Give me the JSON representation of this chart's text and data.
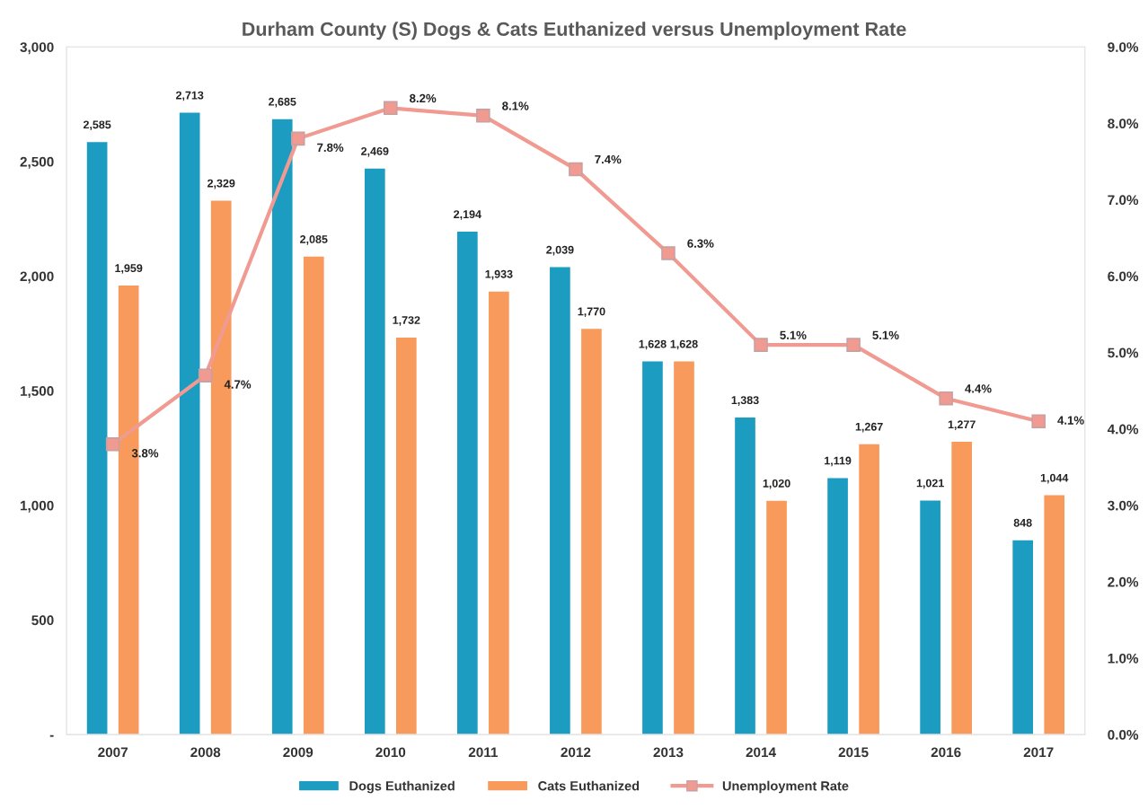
{
  "chart_data": {
    "type": "bar",
    "title": "Durham County (S) Dogs & Cats Euthanized versus Unemployment Rate",
    "categories": [
      "2007",
      "2008",
      "2009",
      "2010",
      "2011",
      "2012",
      "2013",
      "2014",
      "2015",
      "2016",
      "2017"
    ],
    "series": [
      {
        "name": "Dogs Euthanized",
        "color": "#1b9cc0",
        "values": [
          2585,
          2713,
          2685,
          2469,
          2194,
          2039,
          1628,
          1383,
          1119,
          1021,
          848
        ],
        "value_labels": [
          "2,585",
          "2,713",
          "2,685",
          "2,469",
          "2,194",
          "2,039",
          "1,628",
          "1,383",
          "1,119",
          "1,021",
          "848"
        ]
      },
      {
        "name": "Cats Euthanized",
        "color": "#f89a5c",
        "values": [
          1959,
          2329,
          2085,
          1732,
          1933,
          1770,
          1628,
          1020,
          1267,
          1277,
          1044
        ],
        "value_labels": [
          "1,959",
          "2,329",
          "2,085",
          "1,732",
          "1,933",
          "1,770",
          "1,628",
          "1,020",
          "1,267",
          "1,277",
          "1,044"
        ]
      },
      {
        "name": "Unemployment Rate",
        "type": "line",
        "axis": "y2",
        "color": "#f09a92",
        "marker": "square",
        "line_style": "solid",
        "values": [
          3.8,
          4.7,
          7.8,
          8.2,
          8.1,
          7.4,
          6.3,
          5.1,
          5.1,
          4.4,
          4.1
        ],
        "value_labels": [
          "3.8%",
          "4.7%",
          "7.8%",
          "8.2%",
          "8.1%",
          "7.4%",
          "6.3%",
          "5.1%",
          "5.1%",
          "4.4%",
          "4.1%"
        ]
      }
    ],
    "ylim": [
      0,
      3000
    ],
    "yticks": [
      {
        "value": 0,
        "label": "-"
      },
      500,
      {
        "value": 1000,
        "label": "1,000"
      },
      {
        "value": 1500,
        "label": "1,500"
      },
      {
        "value": 2000,
        "label": "2,000"
      },
      {
        "value": 2500,
        "label": "2,500"
      },
      {
        "value": 3000,
        "label": "3,000"
      }
    ],
    "y2lim": [
      0,
      9
    ],
    "y2ticks": [
      {
        "value": 0,
        "label": "0.0%"
      },
      {
        "value": 1,
        "label": "1.0%"
      },
      {
        "value": 2,
        "label": "2.0%"
      },
      {
        "value": 3,
        "label": "3.0%"
      },
      {
        "value": 4,
        "label": "4.0%"
      },
      {
        "value": 5,
        "label": "5.0%"
      },
      {
        "value": 6,
        "label": "6.0%"
      },
      {
        "value": 7,
        "label": "7.0%"
      },
      {
        "value": 8,
        "label": "8.0%"
      },
      {
        "value": 9,
        "label": "9.0%"
      }
    ],
    "grid": false,
    "legend": "bottom"
  }
}
